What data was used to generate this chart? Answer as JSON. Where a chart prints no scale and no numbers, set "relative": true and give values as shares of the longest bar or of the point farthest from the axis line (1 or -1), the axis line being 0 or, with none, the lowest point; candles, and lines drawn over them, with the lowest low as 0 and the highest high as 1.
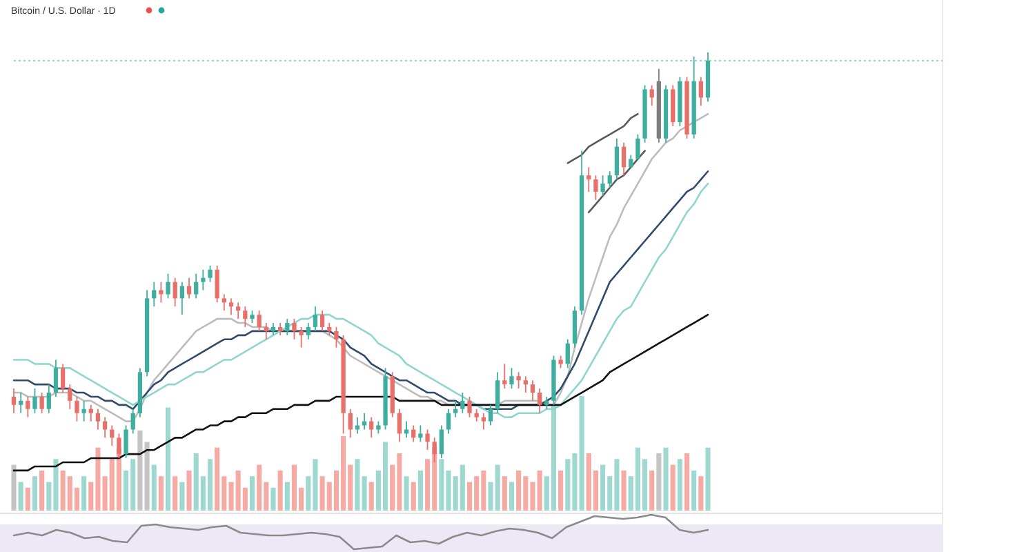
{
  "chart_data": [
    {
      "type": "candlestick",
      "title": "Bitcoin / U.S. Dollar · 1D",
      "relative": true,
      "categories": [
        null,
        null,
        null,
        null,
        null,
        null,
        null,
        null,
        null,
        null,
        null,
        null,
        null,
        null,
        null,
        null,
        null,
        null,
        null,
        null,
        null,
        null,
        null,
        null,
        null,
        null,
        null,
        null,
        null,
        null,
        null,
        null,
        null,
        null,
        null,
        null,
        null,
        null,
        null,
        null,
        null,
        null,
        null,
        null,
        null,
        null,
        null,
        null,
        null,
        null,
        null,
        null,
        null,
        null,
        null,
        null,
        null,
        null,
        null,
        null,
        null,
        null,
        null,
        null,
        null,
        null,
        null,
        null,
        null,
        null,
        null,
        null,
        null,
        null,
        null,
        null,
        null,
        null,
        null,
        null,
        null,
        null,
        null,
        null,
        null,
        null,
        null,
        null,
        null,
        null,
        null,
        null,
        null,
        null,
        null,
        null,
        null,
        null,
        null,
        null
      ],
      "ohlc": [
        [
          0.16,
          0.18,
          0.12,
          0.14
        ],
        [
          0.14,
          0.17,
          0.12,
          0.15
        ],
        [
          0.15,
          0.16,
          0.11,
          0.13
        ],
        [
          0.13,
          0.18,
          0.12,
          0.16
        ],
        [
          0.16,
          0.17,
          0.12,
          0.13
        ],
        [
          0.13,
          0.19,
          0.12,
          0.17
        ],
        [
          0.17,
          0.25,
          0.16,
          0.23
        ],
        [
          0.23,
          0.24,
          0.17,
          0.18
        ],
        [
          0.18,
          0.19,
          0.13,
          0.15
        ],
        [
          0.15,
          0.16,
          0.1,
          0.12
        ],
        [
          0.12,
          0.15,
          0.1,
          0.13
        ],
        [
          0.13,
          0.14,
          0.1,
          0.12
        ],
        [
          0.12,
          0.13,
          0.08,
          0.1
        ],
        [
          0.1,
          0.11,
          0.06,
          0.08
        ],
        [
          0.08,
          0.09,
          0.04,
          0.06
        ],
        [
          0.06,
          0.07,
          0.01,
          0.02
        ],
        [
          0.02,
          0.09,
          0.01,
          0.08
        ],
        [
          0.08,
          0.13,
          0.07,
          0.12
        ],
        [
          0.12,
          0.23,
          0.11,
          0.22
        ],
        [
          0.22,
          0.42,
          0.21,
          0.4
        ],
        [
          0.4,
          0.44,
          0.38,
          0.42
        ],
        [
          0.42,
          0.44,
          0.39,
          0.41
        ],
        [
          0.41,
          0.46,
          0.4,
          0.44
        ],
        [
          0.44,
          0.45,
          0.38,
          0.4
        ],
        [
          0.4,
          0.44,
          0.36,
          0.43
        ],
        [
          0.43,
          0.45,
          0.4,
          0.41
        ],
        [
          0.41,
          0.46,
          0.4,
          0.44
        ],
        [
          0.44,
          0.47,
          0.42,
          0.45
        ],
        [
          0.45,
          0.48,
          0.44,
          0.47
        ],
        [
          0.47,
          0.48,
          0.39,
          0.4
        ],
        [
          0.4,
          0.41,
          0.37,
          0.39
        ],
        [
          0.39,
          0.4,
          0.36,
          0.38
        ],
        [
          0.38,
          0.39,
          0.35,
          0.37
        ],
        [
          0.37,
          0.38,
          0.33,
          0.35
        ],
        [
          0.35,
          0.37,
          0.34,
          0.36
        ],
        [
          0.36,
          0.37,
          0.32,
          0.33
        ],
        [
          0.33,
          0.34,
          0.3,
          0.32
        ],
        [
          0.32,
          0.34,
          0.31,
          0.33
        ],
        [
          0.33,
          0.34,
          0.31,
          0.32
        ],
        [
          0.32,
          0.35,
          0.31,
          0.34
        ],
        [
          0.34,
          0.35,
          0.3,
          0.32
        ],
        [
          0.32,
          0.33,
          0.28,
          0.31
        ],
        [
          0.31,
          0.34,
          0.3,
          0.33
        ],
        [
          0.33,
          0.38,
          0.32,
          0.36
        ],
        [
          0.36,
          0.37,
          0.32,
          0.33
        ],
        [
          0.33,
          0.34,
          0.31,
          0.32
        ],
        [
          0.32,
          0.33,
          0.28,
          0.3
        ],
        [
          0.3,
          0.31,
          0.07,
          0.12
        ],
        [
          0.12,
          0.13,
          0.06,
          0.08
        ],
        [
          0.08,
          0.11,
          0.07,
          0.09
        ],
        [
          0.09,
          0.12,
          0.08,
          0.1
        ],
        [
          0.1,
          0.11,
          0.06,
          0.08
        ],
        [
          0.08,
          0.1,
          0.07,
          0.09
        ],
        [
          0.09,
          0.23,
          0.08,
          0.21
        ],
        [
          0.21,
          0.22,
          0.11,
          0.12
        ],
        [
          0.12,
          0.13,
          0.05,
          0.07
        ],
        [
          0.07,
          0.1,
          0.06,
          0.08
        ],
        [
          0.08,
          0.09,
          0.05,
          0.06
        ],
        [
          0.06,
          0.09,
          0.05,
          0.07
        ],
        [
          0.07,
          0.08,
          0.03,
          0.05
        ],
        [
          0.05,
          0.06,
          0.0,
          0.02
        ],
        [
          0.02,
          0.09,
          0.01,
          0.08
        ],
        [
          0.08,
          0.13,
          0.07,
          0.12
        ],
        [
          0.12,
          0.15,
          0.11,
          0.13
        ],
        [
          0.13,
          0.17,
          0.12,
          0.15
        ],
        [
          0.15,
          0.16,
          0.11,
          0.12
        ],
        [
          0.12,
          0.13,
          0.1,
          0.11
        ],
        [
          0.11,
          0.12,
          0.08,
          0.1
        ],
        [
          0.1,
          0.14,
          0.09,
          0.13
        ],
        [
          0.13,
          0.22,
          0.12,
          0.2
        ],
        [
          0.2,
          0.24,
          0.18,
          0.19
        ],
        [
          0.19,
          0.23,
          0.18,
          0.21
        ],
        [
          0.21,
          0.22,
          0.18,
          0.2
        ],
        [
          0.2,
          0.21,
          0.17,
          0.19
        ],
        [
          0.19,
          0.2,
          0.15,
          0.17
        ],
        [
          0.17,
          0.18,
          0.12,
          0.14
        ],
        [
          0.14,
          0.16,
          0.13,
          0.15
        ],
        [
          0.15,
          0.26,
          0.14,
          0.25
        ],
        [
          0.25,
          0.26,
          0.23,
          0.24
        ],
        [
          0.24,
          0.3,
          0.23,
          0.29
        ],
        [
          0.29,
          0.38,
          0.28,
          0.37
        ],
        [
          0.37,
          0.76,
          0.36,
          0.7
        ],
        [
          0.7,
          0.72,
          0.66,
          0.69
        ],
        [
          0.69,
          0.7,
          0.64,
          0.66
        ],
        [
          0.66,
          0.7,
          0.65,
          0.68
        ],
        [
          0.68,
          0.71,
          0.67,
          0.7
        ],
        [
          0.7,
          0.79,
          0.69,
          0.77
        ],
        [
          0.77,
          0.78,
          0.7,
          0.72
        ],
        [
          0.72,
          0.75,
          0.72,
          0.74
        ],
        [
          0.74,
          0.8,
          0.74,
          0.79
        ],
        [
          0.79,
          0.92,
          0.78,
          0.91
        ],
        [
          0.91,
          0.92,
          0.87,
          0.89
        ],
        [
          0.93,
          0.96,
          0.78,
          0.79
        ],
        [
          0.79,
          0.92,
          0.78,
          0.91
        ],
        [
          0.91,
          0.92,
          0.82,
          0.83
        ],
        [
          0.83,
          0.94,
          0.82,
          0.93
        ],
        [
          0.93,
          0.94,
          0.79,
          0.8
        ],
        [
          0.8,
          0.99,
          0.79,
          0.93
        ],
        [
          0.93,
          0.94,
          0.87,
          0.89
        ],
        [
          0.89,
          1.0,
          0.88,
          0.98
        ]
      ],
      "colors": [
        "#e8706b",
        "#3fae9f",
        "#e8706b",
        "#3fae9f",
        "#e8706b",
        "#3fae9f",
        "#3fae9f",
        "#e8706b",
        "#e8706b",
        "#e8706b",
        "#3fae9f",
        "#e8706b",
        "#e8706b",
        "#e8706b",
        "#e8706b",
        "#e8706b",
        "#3fae9f",
        "#3fae9f",
        "#3fae9f",
        "#3fae9f",
        "#3fae9f",
        "#e8706b",
        "#3fae9f",
        "#e8706b",
        "#3fae9f",
        "#e8706b",
        "#3fae9f",
        "#3fae9f",
        "#3fae9f",
        "#e8706b",
        "#e8706b",
        "#e8706b",
        "#e8706b",
        "#e8706b",
        "#3fae9f",
        "#e8706b",
        "#e8706b",
        "#3fae9f",
        "#e8706b",
        "#3fae9f",
        "#e8706b",
        "#e8706b",
        "#3fae9f",
        "#3fae9f",
        "#e8706b",
        "#e8706b",
        "#e8706b",
        "#e8706b",
        "#e8706b",
        "#3fae9f",
        "#3fae9f",
        "#e8706b",
        "#3fae9f",
        "#3fae9f",
        "#e8706b",
        "#e8706b",
        "#3fae9f",
        "#e8706b",
        "#3fae9f",
        "#e8706b",
        "#e8706b",
        "#3fae9f",
        "#3fae9f",
        "#3fae9f",
        "#3fae9f",
        "#e8706b",
        "#e8706b",
        "#e8706b",
        "#3fae9f",
        "#3fae9f",
        "#e8706b",
        "#3fae9f",
        "#e8706b",
        "#e8706b",
        "#e8706b",
        "#e8706b",
        "#3fae9f",
        "#3fae9f",
        "#e8706b",
        "#3fae9f",
        "#3fae9f",
        "#3fae9f",
        "#e8706b",
        "#e8706b",
        "#3fae9f",
        "#3fae9f",
        "#3fae9f",
        "#e8706b",
        "#3fae9f",
        "#3fae9f",
        "#3fae9f",
        "#e8706b",
        "#7d7d7d",
        "#3fae9f",
        "#e8706b",
        "#3fae9f",
        "#e8706b",
        "#3fae9f",
        "#e8706b",
        "#3fae9f"
      ],
      "series": [
        {
          "type": "line",
          "color": "#bcbcbc",
          "values": [
            0.17,
            0.17,
            0.16,
            0.16,
            0.16,
            0.16,
            0.17,
            0.17,
            0.17,
            0.16,
            0.15,
            0.15,
            0.14,
            0.13,
            0.12,
            0.11,
            0.1,
            0.1,
            0.13,
            0.17,
            0.2,
            0.22,
            0.24,
            0.26,
            0.28,
            0.3,
            0.32,
            0.33,
            0.34,
            0.35,
            0.35,
            0.35,
            0.34,
            0.34,
            0.33,
            0.33,
            0.33,
            0.32,
            0.32,
            0.32,
            0.32,
            0.32,
            0.32,
            0.32,
            0.32,
            0.31,
            0.3,
            0.28,
            0.26,
            0.25,
            0.24,
            0.23,
            0.22,
            0.21,
            0.2,
            0.19,
            0.18,
            0.17,
            0.16,
            0.16,
            0.15,
            0.15,
            0.14,
            0.14,
            0.14,
            0.14,
            0.14,
            0.14,
            0.14,
            0.14,
            0.15,
            0.15,
            0.15,
            0.15,
            0.15,
            0.15,
            0.14,
            0.14,
            0.17,
            0.21,
            0.28,
            0.34,
            0.4,
            0.45,
            0.5,
            0.55,
            0.58,
            0.62,
            0.65,
            0.68,
            0.71,
            0.74,
            0.76,
            0.78,
            0.79,
            0.81,
            0.82,
            0.83,
            0.84,
            0.85
          ]
        },
        {
          "type": "line",
          "color": "#2f4a6b",
          "values": [
            0.2,
            0.2,
            0.2,
            0.19,
            0.19,
            0.19,
            0.18,
            0.18,
            0.18,
            0.17,
            0.17,
            0.16,
            0.16,
            0.15,
            0.15,
            0.14,
            0.14,
            0.13,
            0.15,
            0.17,
            0.19,
            0.2,
            0.22,
            0.23,
            0.24,
            0.25,
            0.26,
            0.27,
            0.28,
            0.29,
            0.3,
            0.3,
            0.31,
            0.31,
            0.32,
            0.32,
            0.32,
            0.32,
            0.32,
            0.32,
            0.32,
            0.32,
            0.32,
            0.32,
            0.32,
            0.32,
            0.31,
            0.3,
            0.28,
            0.27,
            0.26,
            0.24,
            0.23,
            0.22,
            0.21,
            0.2,
            0.2,
            0.19,
            0.18,
            0.17,
            0.17,
            0.16,
            0.15,
            0.15,
            0.14,
            0.14,
            0.14,
            0.13,
            0.13,
            0.13,
            0.13,
            0.13,
            0.14,
            0.14,
            0.14,
            0.14,
            0.15,
            0.16,
            0.18,
            0.21,
            0.24,
            0.28,
            0.32,
            0.36,
            0.4,
            0.44,
            0.46,
            0.48,
            0.5,
            0.52,
            0.54,
            0.56,
            0.58,
            0.6,
            0.62,
            0.64,
            0.66,
            0.67,
            0.69,
            0.71
          ]
        },
        {
          "type": "line",
          "color": "#8fd6ce",
          "values": [
            0.25,
            0.25,
            0.25,
            0.24,
            0.24,
            0.24,
            0.23,
            0.23,
            0.23,
            0.22,
            0.21,
            0.2,
            0.19,
            0.18,
            0.17,
            0.16,
            0.15,
            0.14,
            0.15,
            0.16,
            0.17,
            0.18,
            0.19,
            0.19,
            0.2,
            0.21,
            0.22,
            0.22,
            0.23,
            0.24,
            0.25,
            0.25,
            0.26,
            0.27,
            0.28,
            0.29,
            0.3,
            0.31,
            0.32,
            0.33,
            0.34,
            0.35,
            0.35,
            0.36,
            0.36,
            0.36,
            0.35,
            0.35,
            0.34,
            0.33,
            0.32,
            0.31,
            0.29,
            0.28,
            0.27,
            0.26,
            0.24,
            0.23,
            0.22,
            0.21,
            0.2,
            0.19,
            0.18,
            0.17,
            0.16,
            0.15,
            0.14,
            0.13,
            0.12,
            0.12,
            0.11,
            0.11,
            0.12,
            0.12,
            0.12,
            0.12,
            0.13,
            0.13,
            0.14,
            0.16,
            0.18,
            0.2,
            0.23,
            0.26,
            0.29,
            0.32,
            0.35,
            0.37,
            0.38,
            0.41,
            0.44,
            0.47,
            0.5,
            0.52,
            0.55,
            0.58,
            0.61,
            0.63,
            0.66,
            0.68
          ]
        },
        {
          "type": "line",
          "color": "#111111",
          "values": [
            -0.02,
            -0.02,
            -0.02,
            -0.01,
            -0.01,
            -0.01,
            -0.01,
            0.0,
            0.0,
            0.0,
            0.0,
            0.01,
            0.01,
            0.01,
            0.01,
            0.01,
            0.02,
            0.02,
            0.02,
            0.03,
            0.03,
            0.04,
            0.05,
            0.06,
            0.06,
            0.07,
            0.08,
            0.08,
            0.09,
            0.09,
            0.1,
            0.1,
            0.11,
            0.11,
            0.12,
            0.12,
            0.12,
            0.13,
            0.13,
            0.13,
            0.14,
            0.14,
            0.14,
            0.15,
            0.15,
            0.15,
            0.16,
            0.16,
            0.16,
            0.16,
            0.16,
            0.16,
            0.16,
            0.16,
            0.16,
            0.15,
            0.15,
            0.15,
            0.15,
            0.15,
            0.15,
            0.14,
            0.14,
            0.14,
            0.14,
            0.14,
            0.14,
            0.14,
            0.14,
            0.14,
            0.14,
            0.14,
            0.14,
            0.14,
            0.14,
            0.14,
            0.14,
            0.14,
            0.14,
            0.15,
            0.16,
            0.17,
            0.18,
            0.19,
            0.2,
            0.22,
            0.23,
            0.24,
            0.25,
            0.26,
            0.27,
            0.28,
            0.29,
            0.3,
            0.31,
            0.32,
            0.33,
            0.34,
            0.35,
            0.36
          ]
        },
        {
          "type": "line",
          "color": "#5a5a5a",
          "values": [
            null,
            null,
            null,
            null,
            null,
            null,
            null,
            null,
            null,
            null,
            null,
            null,
            null,
            null,
            null,
            null,
            null,
            null,
            null,
            null,
            null,
            null,
            null,
            null,
            null,
            null,
            null,
            null,
            null,
            null,
            null,
            null,
            null,
            null,
            null,
            null,
            null,
            null,
            null,
            null,
            null,
            null,
            null,
            null,
            null,
            null,
            null,
            null,
            null,
            null,
            null,
            null,
            null,
            null,
            null,
            null,
            null,
            null,
            null,
            null,
            null,
            null,
            null,
            null,
            null,
            null,
            null,
            null,
            null,
            null,
            null,
            null,
            null,
            null,
            null,
            null,
            null,
            null,
            null,
            0.73,
            0.74,
            0.75,
            0.77,
            0.78,
            0.79,
            0.8,
            0.81,
            0.82,
            0.84,
            0.85,
            null,
            null,
            null,
            null,
            null,
            null,
            null,
            null,
            null,
            null
          ]
        },
        {
          "type": "line",
          "color": "#5a5a5a",
          "values": [
            null,
            null,
            null,
            null,
            null,
            null,
            null,
            null,
            null,
            null,
            null,
            null,
            null,
            null,
            null,
            null,
            null,
            null,
            null,
            null,
            null,
            null,
            null,
            null,
            null,
            null,
            null,
            null,
            null,
            null,
            null,
            null,
            null,
            null,
            null,
            null,
            null,
            null,
            null,
            null,
            null,
            null,
            null,
            null,
            null,
            null,
            null,
            null,
            null,
            null,
            null,
            null,
            null,
            null,
            null,
            null,
            null,
            null,
            null,
            null,
            null,
            null,
            null,
            null,
            null,
            null,
            null,
            null,
            null,
            null,
            null,
            null,
            null,
            null,
            null,
            null,
            null,
            null,
            null,
            null,
            null,
            null,
            0.61,
            0.63,
            0.65,
            0.67,
            0.69,
            0.7,
            0.72,
            0.74,
            0.76,
            null,
            null,
            null,
            null,
            null,
            null,
            null,
            null,
            null
          ]
        }
      ],
      "ref_lines": [
        {
          "axis": "y",
          "value": 0.98,
          "color": "#8fd6ce",
          "line_style": "dotted"
        }
      ]
    },
    {
      "type": "bar",
      "relative": true,
      "categories": [
        null,
        null,
        null,
        null,
        null,
        null,
        null,
        null,
        null,
        null,
        null,
        null,
        null,
        null,
        null,
        null,
        null,
        null,
        null,
        null,
        null,
        null,
        null,
        null,
        null,
        null,
        null,
        null,
        null,
        null,
        null,
        null,
        null,
        null,
        null,
        null,
        null,
        null,
        null,
        null,
        null,
        null,
        null,
        null,
        null,
        null,
        null,
        null,
        null,
        null,
        null,
        null,
        null,
        null,
        null,
        null,
        null,
        null,
        null,
        null,
        null,
        null,
        null,
        null,
        null,
        null,
        null,
        null,
        null,
        null,
        null,
        null,
        null,
        null,
        null,
        null,
        null,
        null,
        null,
        null,
        null,
        null,
        null,
        null,
        null,
        null,
        null,
        null,
        null,
        null,
        null,
        null,
        null,
        null,
        null,
        null,
        null,
        null,
        null,
        null
      ],
      "values": [
        0.4,
        0.25,
        0.2,
        0.3,
        0.35,
        0.25,
        0.45,
        0.35,
        0.3,
        0.2,
        0.3,
        0.25,
        0.55,
        0.3,
        0.45,
        0.55,
        0.35,
        0.45,
        0.7,
        0.6,
        0.4,
        0.3,
        0.9,
        0.3,
        0.25,
        0.35,
        0.5,
        0.3,
        0.45,
        0.55,
        0.3,
        0.25,
        0.35,
        0.2,
        0.3,
        0.4,
        0.25,
        0.2,
        0.35,
        0.25,
        0.4,
        0.2,
        0.3,
        0.45,
        0.3,
        0.25,
        0.35,
        0.65,
        0.4,
        0.45,
        0.3,
        0.25,
        0.35,
        0.6,
        0.4,
        0.5,
        0.3,
        0.25,
        0.35,
        0.45,
        0.55,
        0.45,
        0.35,
        0.3,
        0.4,
        0.25,
        0.3,
        0.35,
        0.25,
        0.4,
        0.3,
        0.25,
        0.35,
        0.3,
        0.25,
        0.35,
        0.3,
        0.93,
        0.35,
        0.45,
        0.5,
        1.0,
        0.5,
        0.35,
        0.4,
        0.3,
        0.45,
        0.35,
        0.3,
        0.55,
        0.45,
        0.35,
        0.5,
        0.55,
        0.4,
        0.45,
        0.5,
        0.35,
        0.3,
        0.55
      ],
      "colors": [
        "#c4c4c4",
        "#9ed8d0",
        "#f6aaa4",
        "#9ed8d0",
        "#f6aaa4",
        "#9ed8d0",
        "#9ed8d0",
        "#f6aaa4",
        "#f6aaa4",
        "#f6aaa4",
        "#9ed8d0",
        "#f6aaa4",
        "#f6aaa4",
        "#f6aaa4",
        "#f6aaa4",
        "#f6aaa4",
        "#9ed8d0",
        "#9ed8d0",
        "#c4c4c4",
        "#c4c4c4",
        "#9ed8d0",
        "#f6aaa4",
        "#9ed8d0",
        "#f6aaa4",
        "#9ed8d0",
        "#f6aaa4",
        "#9ed8d0",
        "#9ed8d0",
        "#9ed8d0",
        "#f6aaa4",
        "#f6aaa4",
        "#f6aaa4",
        "#f6aaa4",
        "#f6aaa4",
        "#9ed8d0",
        "#f6aaa4",
        "#f6aaa4",
        "#9ed8d0",
        "#f6aaa4",
        "#9ed8d0",
        "#f6aaa4",
        "#f6aaa4",
        "#9ed8d0",
        "#9ed8d0",
        "#f6aaa4",
        "#f6aaa4",
        "#f6aaa4",
        "#f6aaa4",
        "#f6aaa4",
        "#9ed8d0",
        "#9ed8d0",
        "#f6aaa4",
        "#9ed8d0",
        "#9ed8d0",
        "#f6aaa4",
        "#f6aaa4",
        "#9ed8d0",
        "#f6aaa4",
        "#9ed8d0",
        "#f6aaa4",
        "#f6aaa4",
        "#9ed8d0",
        "#9ed8d0",
        "#9ed8d0",
        "#9ed8d0",
        "#f6aaa4",
        "#f6aaa4",
        "#f6aaa4",
        "#9ed8d0",
        "#9ed8d0",
        "#f6aaa4",
        "#9ed8d0",
        "#f6aaa4",
        "#f6aaa4",
        "#f6aaa4",
        "#f6aaa4",
        "#9ed8d0",
        "#9ed8d0",
        "#f6aaa4",
        "#9ed8d0",
        "#9ed8d0",
        "#9ed8d0",
        "#f6aaa4",
        "#f6aaa4",
        "#9ed8d0",
        "#9ed8d0",
        "#9ed8d0",
        "#f6aaa4",
        "#9ed8d0",
        "#9ed8d0",
        "#9ed8d0",
        "#f6aaa4",
        "#c4c4c4",
        "#9ed8d0",
        "#f6aaa4",
        "#9ed8d0",
        "#f6aaa4",
        "#9ed8d0",
        "#f6aaa4",
        "#9ed8d0"
      ]
    },
    {
      "type": "line",
      "relative": true,
      "categories": [
        null,
        null,
        null,
        null,
        null,
        null,
        null,
        null,
        null,
        null,
        null,
        null,
        null,
        null,
        null,
        null,
        null,
        null,
        null,
        null,
        null,
        null,
        null,
        null,
        null,
        null,
        null,
        null,
        null,
        null,
        null,
        null,
        null,
        null,
        null,
        null,
        null,
        null,
        null,
        null,
        null,
        null,
        null,
        null,
        null,
        null,
        null,
        null,
        null,
        null
      ],
      "series": [
        {
          "color": "#8a8a8a",
          "values": [
            0.4,
            0.48,
            0.4,
            0.56,
            0.48,
            0.32,
            0.36,
            0.24,
            0.2,
            0.68,
            0.72,
            0.64,
            0.6,
            0.56,
            0.64,
            0.68,
            0.48,
            0.44,
            0.4,
            0.4,
            0.44,
            0.48,
            0.44,
            0.36,
            0.0,
            0.04,
            0.08,
            0.4,
            0.2,
            0.24,
            0.16,
            0.36,
            0.48,
            0.4,
            0.52,
            0.6,
            0.56,
            0.48,
            0.32,
            0.64,
            0.8,
            0.96,
            0.92,
            0.88,
            0.92,
            1.0,
            0.92,
            0.56,
            0.48,
            0.56
          ]
        }
      ],
      "bands": [
        {
          "axis": "y",
          "from": -0.08,
          "to": 0.72,
          "color": "#ece8f6"
        }
      ]
    }
  ]
}
